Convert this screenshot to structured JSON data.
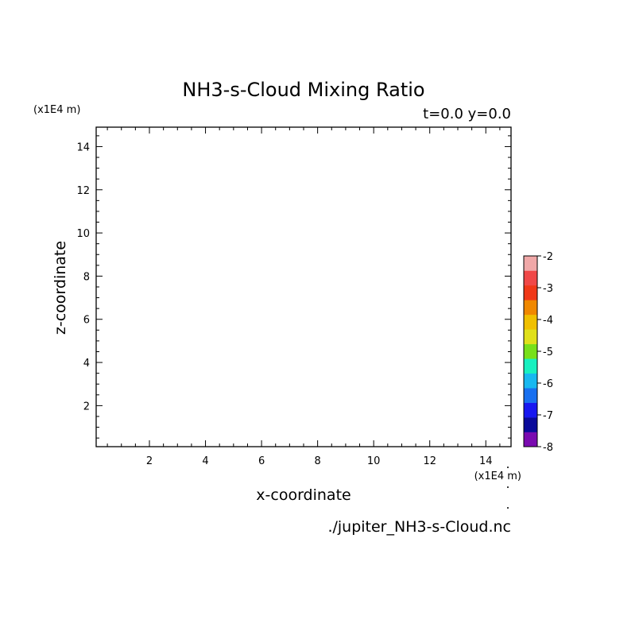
{
  "chart_data": {
    "type": "heatmap",
    "title": "NH3-s-Cloud Mixing Ratio",
    "subtitle": "t=0.0 y=0.0",
    "xlabel": "x-coordinate",
    "ylabel": "z-coordinate",
    "x_unit": "(x1E4 m)",
    "y_unit": "(x1E4 m)",
    "xlim": [
      0.1,
      14.9
    ],
    "ylim": [
      0.1,
      14.9
    ],
    "x_ticks": [
      2,
      4,
      6,
      8,
      10,
      12,
      14
    ],
    "y_ticks": [
      2,
      4,
      6,
      8,
      10,
      12,
      14
    ],
    "x_tick_labels": [
      "2",
      "4",
      "6",
      "8",
      "10",
      "12",
      "14"
    ],
    "y_tick_labels": [
      "2",
      "4",
      "6",
      "8",
      "10",
      "12",
      "14"
    ],
    "grid": false,
    "values": [],
    "colorbar": {
      "range": [
        -8,
        -2
      ],
      "tick_labels": [
        "-2",
        "-3",
        "-4",
        "-5",
        "-6",
        "-7",
        "-8"
      ],
      "colors": [
        "#7a0ab0",
        "#0a0a9a",
        "#1818f0",
        "#1870f0",
        "#18b8f0",
        "#18f0c0",
        "#78e01a",
        "#e0e01a",
        "#f0c000",
        "#f08800",
        "#f03818",
        "#f04848",
        "#f0a8a8"
      ]
    },
    "footnote": "./jupiter_NH3-s-Cloud.nc"
  }
}
